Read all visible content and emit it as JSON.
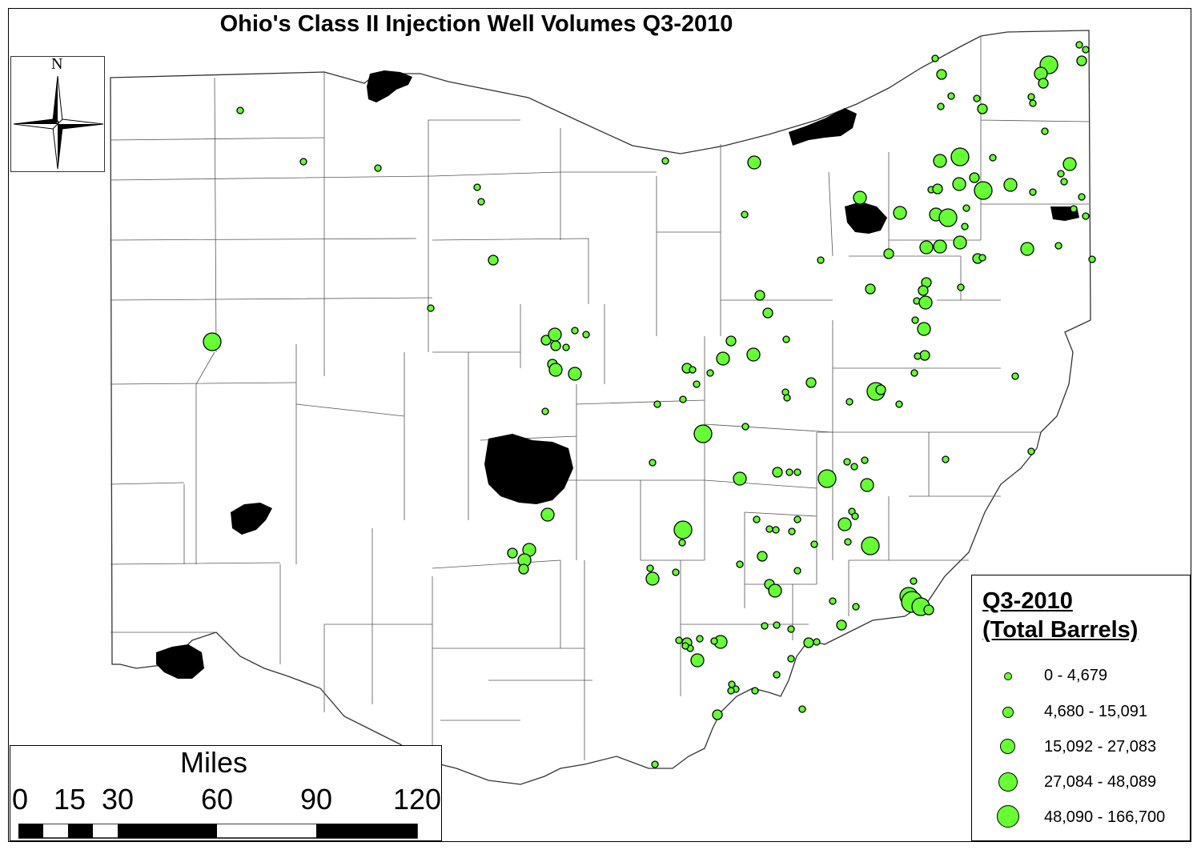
{
  "title": "Ohio's Class II Injection Well Volumes Q3-2010",
  "north_arrow": {
    "label": "N"
  },
  "scale_bar": {
    "units": "Miles",
    "ticks": [
      "0",
      "15",
      "30",
      "60",
      "90",
      "120"
    ]
  },
  "legend": {
    "title_line1": "Q3-2010",
    "title_line2": "(Total Barrels)",
    "classes": [
      {
        "label": "0 - 4,679"
      },
      {
        "label": "4,680 - 15,091"
      },
      {
        "label": "15,092 - 27,083"
      },
      {
        "label": "27,084 - 48,089"
      },
      {
        "label": "48,090 - 166,700"
      }
    ]
  },
  "colors": {
    "well_fill": "#66ff33",
    "well_stroke": "#000000",
    "urban_fill": "#000000",
    "county_line": "#555555"
  }
}
